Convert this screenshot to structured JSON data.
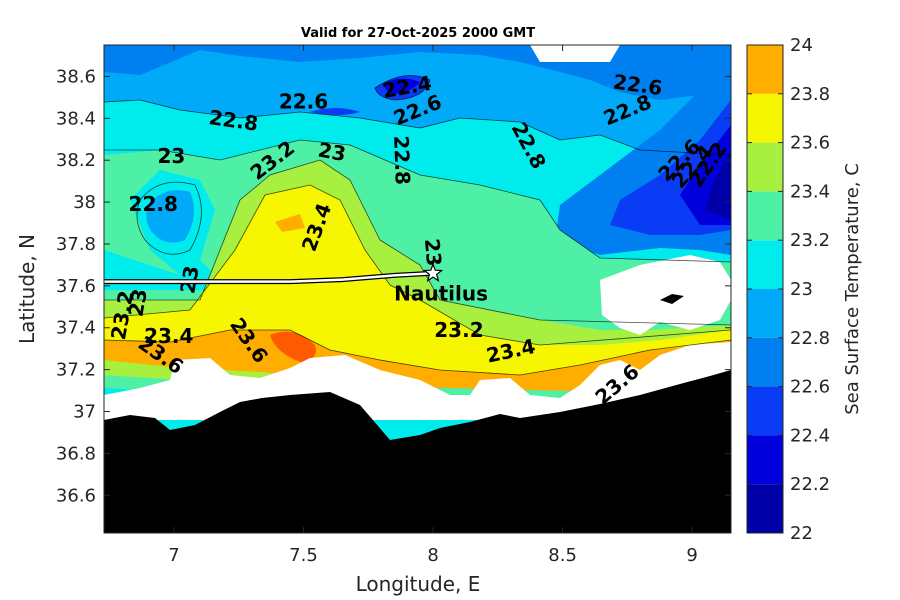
{
  "chart_data": {
    "type": "heatmap",
    "title": "Valid for 27-Oct-2025 2000 GMT",
    "xlabel": "Longitude, E",
    "ylabel": "Latitude, N",
    "xlim": [
      6.73,
      9.15
    ],
    "ylim": [
      36.42,
      38.75
    ],
    "xticks": [
      7,
      7.5,
      8,
      8.5,
      9
    ],
    "xtick_labels": [
      "7",
      "7.5",
      "8",
      "8.5",
      "9"
    ],
    "yticks": [
      36.6,
      36.8,
      37,
      37.2,
      37.4,
      37.6,
      37.8,
      38,
      38.2,
      38.4,
      38.6
    ],
    "ytick_labels": [
      "36.6",
      "36.8",
      "37",
      "37.2",
      "37.4",
      "37.6",
      "37.8",
      "38",
      "38.2",
      "38.4",
      "38.6"
    ],
    "colorbar": {
      "label": "Sea Surface Temperature, C",
      "levels": [
        22,
        22.2,
        22.4,
        22.6,
        22.8,
        23,
        23.2,
        23.4,
        23.6,
        23.8,
        24
      ],
      "tick_labels": [
        "22",
        "22.2",
        "22.4",
        "22.6",
        "22.8",
        "23",
        "23.2",
        "23.4",
        "23.6",
        "23.8",
        "24"
      ],
      "colors": [
        "#0000a8",
        "#0000dd",
        "#0a3cf5",
        "#0080f0",
        "#00aaf8",
        "#00ecec",
        "#4ef0a6",
        "#a8f040",
        "#f6f600",
        "#ffae00",
        "#ff5a00"
      ]
    },
    "contour_labels": [
      {
        "text": "22.6",
        "lon": 7.5,
        "lat": 38.48,
        "rot": 0
      },
      {
        "text": "22.4",
        "lon": 7.9,
        "lat": 38.55,
        "rot": -10
      },
      {
        "text": "22.6",
        "lon": 7.94,
        "lat": 38.44,
        "rot": -22
      },
      {
        "text": "22.8",
        "lon": 7.23,
        "lat": 38.39,
        "rot": 8
      },
      {
        "text": "22.6",
        "lon": 8.79,
        "lat": 38.56,
        "rot": 8
      },
      {
        "text": "22.8",
        "lon": 8.75,
        "lat": 38.44,
        "rot": -22
      },
      {
        "text": "23",
        "lon": 6.99,
        "lat": 38.22,
        "rot": 0
      },
      {
        "text": "23",
        "lon": 7.61,
        "lat": 38.24,
        "rot": 10
      },
      {
        "text": "23.2",
        "lon": 7.38,
        "lat": 38.2,
        "rot": -38
      },
      {
        "text": "22.8",
        "lon": 7.88,
        "lat": 38.2,
        "rot": 88
      },
      {
        "text": "22.8",
        "lon": 8.37,
        "lat": 38.27,
        "rot": 62
      },
      {
        "text": "22.6",
        "lon": 8.95,
        "lat": 38.2,
        "rot": -45
      },
      {
        "text": "22.4",
        "lon": 9.0,
        "lat": 38.17,
        "rot": -48
      },
      {
        "text": "22.2",
        "lon": 9.06,
        "lat": 38.18,
        "rot": -55
      },
      {
        "text": "22.8",
        "lon": 6.92,
        "lat": 37.99,
        "rot": 0
      },
      {
        "text": "23.4",
        "lon": 7.55,
        "lat": 37.88,
        "rot": -70
      },
      {
        "text": "23",
        "lon": 8.0,
        "lat": 37.76,
        "rot": 85
      },
      {
        "text": "23",
        "lon": 7.06,
        "lat": 37.63,
        "rot": -80
      },
      {
        "text": "23.2",
        "lon": 6.8,
        "lat": 37.46,
        "rot": -80
      },
      {
        "text": "23",
        "lon": 6.86,
        "lat": 37.52,
        "rot": -80
      },
      {
        "text": "23.4",
        "lon": 6.98,
        "lat": 37.36,
        "rot": 0
      },
      {
        "text": "23.6",
        "lon": 6.95,
        "lat": 37.27,
        "rot": 35
      },
      {
        "text": "23.6",
        "lon": 7.29,
        "lat": 37.34,
        "rot": 55
      },
      {
        "text": "23.2",
        "lon": 8.1,
        "lat": 37.39,
        "rot": 0
      },
      {
        "text": "23.4",
        "lon": 8.3,
        "lat": 37.29,
        "rot": -12
      },
      {
        "text": "23.6",
        "lon": 8.71,
        "lat": 37.13,
        "rot": -40
      }
    ],
    "track": {
      "lon": [
        6.73,
        6.95,
        7.2,
        7.45,
        7.65,
        7.85,
        8.0
      ],
      "lat": [
        37.62,
        37.62,
        37.62,
        37.62,
        37.63,
        37.65,
        37.66
      ]
    },
    "marker": {
      "label": "Nautilus",
      "lon": 8.0,
      "lat": 37.66
    }
  }
}
